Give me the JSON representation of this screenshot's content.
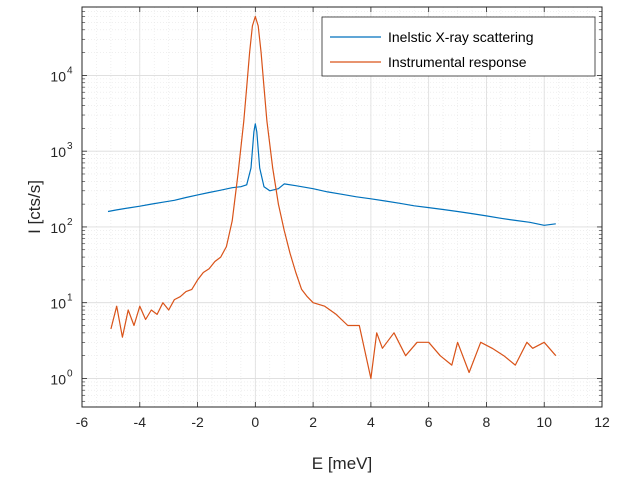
{
  "chart_data": {
    "type": "line",
    "xlabel": "E [meV]",
    "ylabel": "I [cts/s]",
    "xlim": [
      -6,
      12
    ],
    "ylim": [
      0.42,
      80000
    ],
    "yscale": "log",
    "grid": true,
    "minor_grid": true,
    "legend_position": "top-right",
    "xticks": [
      -6,
      -4,
      -2,
      0,
      2,
      4,
      6,
      8,
      10,
      12
    ],
    "xtick_labels": [
      "-6",
      "-4",
      "-2",
      "0",
      "2",
      "4",
      "6",
      "8",
      "10",
      "12"
    ],
    "yticks": [
      {
        "value": 1,
        "base": "10",
        "exp": "0"
      },
      {
        "value": 10,
        "base": "10",
        "exp": "1"
      },
      {
        "value": 100,
        "base": "10",
        "exp": "2"
      },
      {
        "value": 1000,
        "base": "10",
        "exp": "3"
      },
      {
        "value": 10000,
        "base": "10",
        "exp": "4"
      }
    ],
    "series": [
      {
        "name": "Inelstic X-ray scattering",
        "color": "#0072BD",
        "x": [
          -5.1,
          -4.8,
          -4.4,
          -4.0,
          -3.6,
          -3.2,
          -2.8,
          -2.4,
          -2.0,
          -1.6,
          -1.2,
          -0.8,
          -0.5,
          -0.3,
          -0.15,
          -0.05,
          0.0,
          0.05,
          0.15,
          0.3,
          0.5,
          0.8,
          1.0,
          1.4,
          2.0,
          2.5,
          3.0,
          3.5,
          4.0,
          4.5,
          5.0,
          5.5,
          6.0,
          6.5,
          7.0,
          7.5,
          8.0,
          8.5,
          9.0,
          9.5,
          10.0,
          10.4
        ],
        "y": [
          160,
          168,
          178,
          188,
          200,
          212,
          225,
          245,
          265,
          285,
          305,
          330,
          340,
          360,
          600,
          1800,
          2300,
          1800,
          600,
          340,
          300,
          320,
          370,
          350,
          320,
          290,
          270,
          250,
          235,
          220,
          205,
          190,
          180,
          170,
          160,
          150,
          140,
          130,
          122,
          115,
          105,
          110
        ]
      },
      {
        "name": "Instrumental response",
        "color": "#D95319",
        "x": [
          -5.0,
          -4.8,
          -4.6,
          -4.4,
          -4.2,
          -4.0,
          -3.8,
          -3.6,
          -3.4,
          -3.2,
          -3.0,
          -2.8,
          -2.6,
          -2.4,
          -2.2,
          -2.0,
          -1.8,
          -1.6,
          -1.4,
          -1.2,
          -1.0,
          -0.8,
          -0.6,
          -0.4,
          -0.3,
          -0.2,
          -0.1,
          0.0,
          0.1,
          0.2,
          0.3,
          0.4,
          0.6,
          0.8,
          1.0,
          1.2,
          1.4,
          1.6,
          1.8,
          2.0,
          2.4,
          2.8,
          3.2,
          3.6,
          4.0,
          4.2,
          4.4,
          4.8,
          5.2,
          5.6,
          6.0,
          6.4,
          6.8,
          7.0,
          7.4,
          7.8,
          8.2,
          8.6,
          9.0,
          9.4,
          9.6,
          10.0,
          10.4
        ],
        "y": [
          4.5,
          9,
          3.5,
          8,
          5,
          9,
          6,
          8,
          7,
          10,
          8,
          11,
          12,
          14,
          15,
          20,
          25,
          28,
          35,
          40,
          55,
          120,
          500,
          2500,
          7000,
          20000,
          45000,
          60000,
          45000,
          20000,
          7000,
          2500,
          600,
          200,
          90,
          45,
          25,
          15,
          12,
          10,
          9,
          7,
          5,
          5,
          1,
          4,
          2.5,
          4,
          2,
          3,
          3,
          2,
          1.5,
          3,
          1.2,
          3,
          2.5,
          2,
          1.5,
          3,
          2.5,
          3,
          2
        ]
      }
    ]
  }
}
